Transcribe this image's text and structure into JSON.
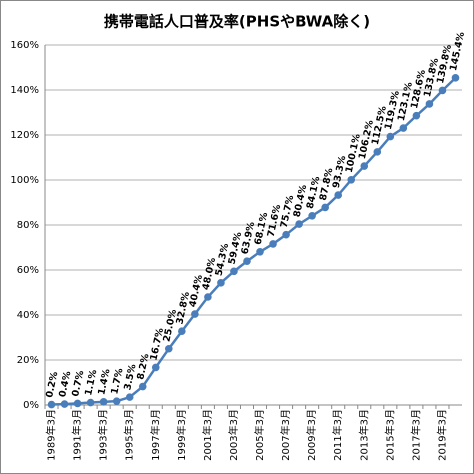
{
  "chart_data": {
    "type": "line",
    "title": "携帯電話人口普及率(PHSやBWA除く)",
    "categories": [
      "1989年3月",
      null,
      "1991年3月",
      null,
      "1993年3月",
      null,
      "1995年3月",
      null,
      "1997年3月",
      null,
      "1999年3月",
      null,
      "2001年3月",
      null,
      "2003年3月",
      null,
      "2005年3月",
      null,
      "2007年3月",
      null,
      "2009年3月",
      null,
      "2011年3月",
      null,
      "2013年3月",
      null,
      "2015年3月",
      null,
      "2017年3月",
      null,
      "2019年3月",
      null
    ],
    "series": [
      {
        "name": "携帯電話人口普及率",
        "color": "#4a7ebb",
        "values": [
          0.2,
          0.4,
          0.7,
          1.1,
          1.4,
          1.7,
          3.5,
          8.2,
          16.7,
          25.0,
          32.8,
          40.4,
          48.0,
          54.3,
          59.4,
          63.9,
          68.1,
          71.6,
          75.7,
          80.4,
          84.1,
          87.8,
          93.3,
          100.1,
          106.2,
          112.5,
          119.3,
          123.1,
          128.6,
          133.8,
          139.8,
          145.4
        ],
        "value_labels": [
          "0.2%",
          "0.4%",
          "0.7%",
          "1.1%",
          "1.4%",
          "1.7%",
          "3.5%",
          "8.2%",
          "16.7%",
          "25.0%",
          "32.8%",
          "40.4%",
          "48.0%",
          "54.3%",
          "59.4%",
          "63.9%",
          "68.1%",
          "71.6%",
          "75.7%",
          "80.4%",
          "84.1%",
          "87.8%",
          "93.3%",
          "100.1%",
          "106.2%",
          "112.5%",
          "119.3%",
          "123.1%",
          "128.6%",
          "133.8%",
          "139.8%",
          "145.4%"
        ]
      }
    ],
    "ylim": [
      0,
      160
    ],
    "yticks": [
      {
        "value": 0,
        "label": "0%"
      },
      {
        "value": 20,
        "label": "20%"
      },
      {
        "value": 40,
        "label": "40%"
      },
      {
        "value": 60,
        "label": "60%"
      },
      {
        "value": 80,
        "label": "80%"
      },
      {
        "value": 100,
        "label": "100%"
      },
      {
        "value": 120,
        "label": "120%"
      },
      {
        "value": 140,
        "label": "140%"
      },
      {
        "value": 160,
        "label": "160%"
      }
    ],
    "grid": true
  }
}
